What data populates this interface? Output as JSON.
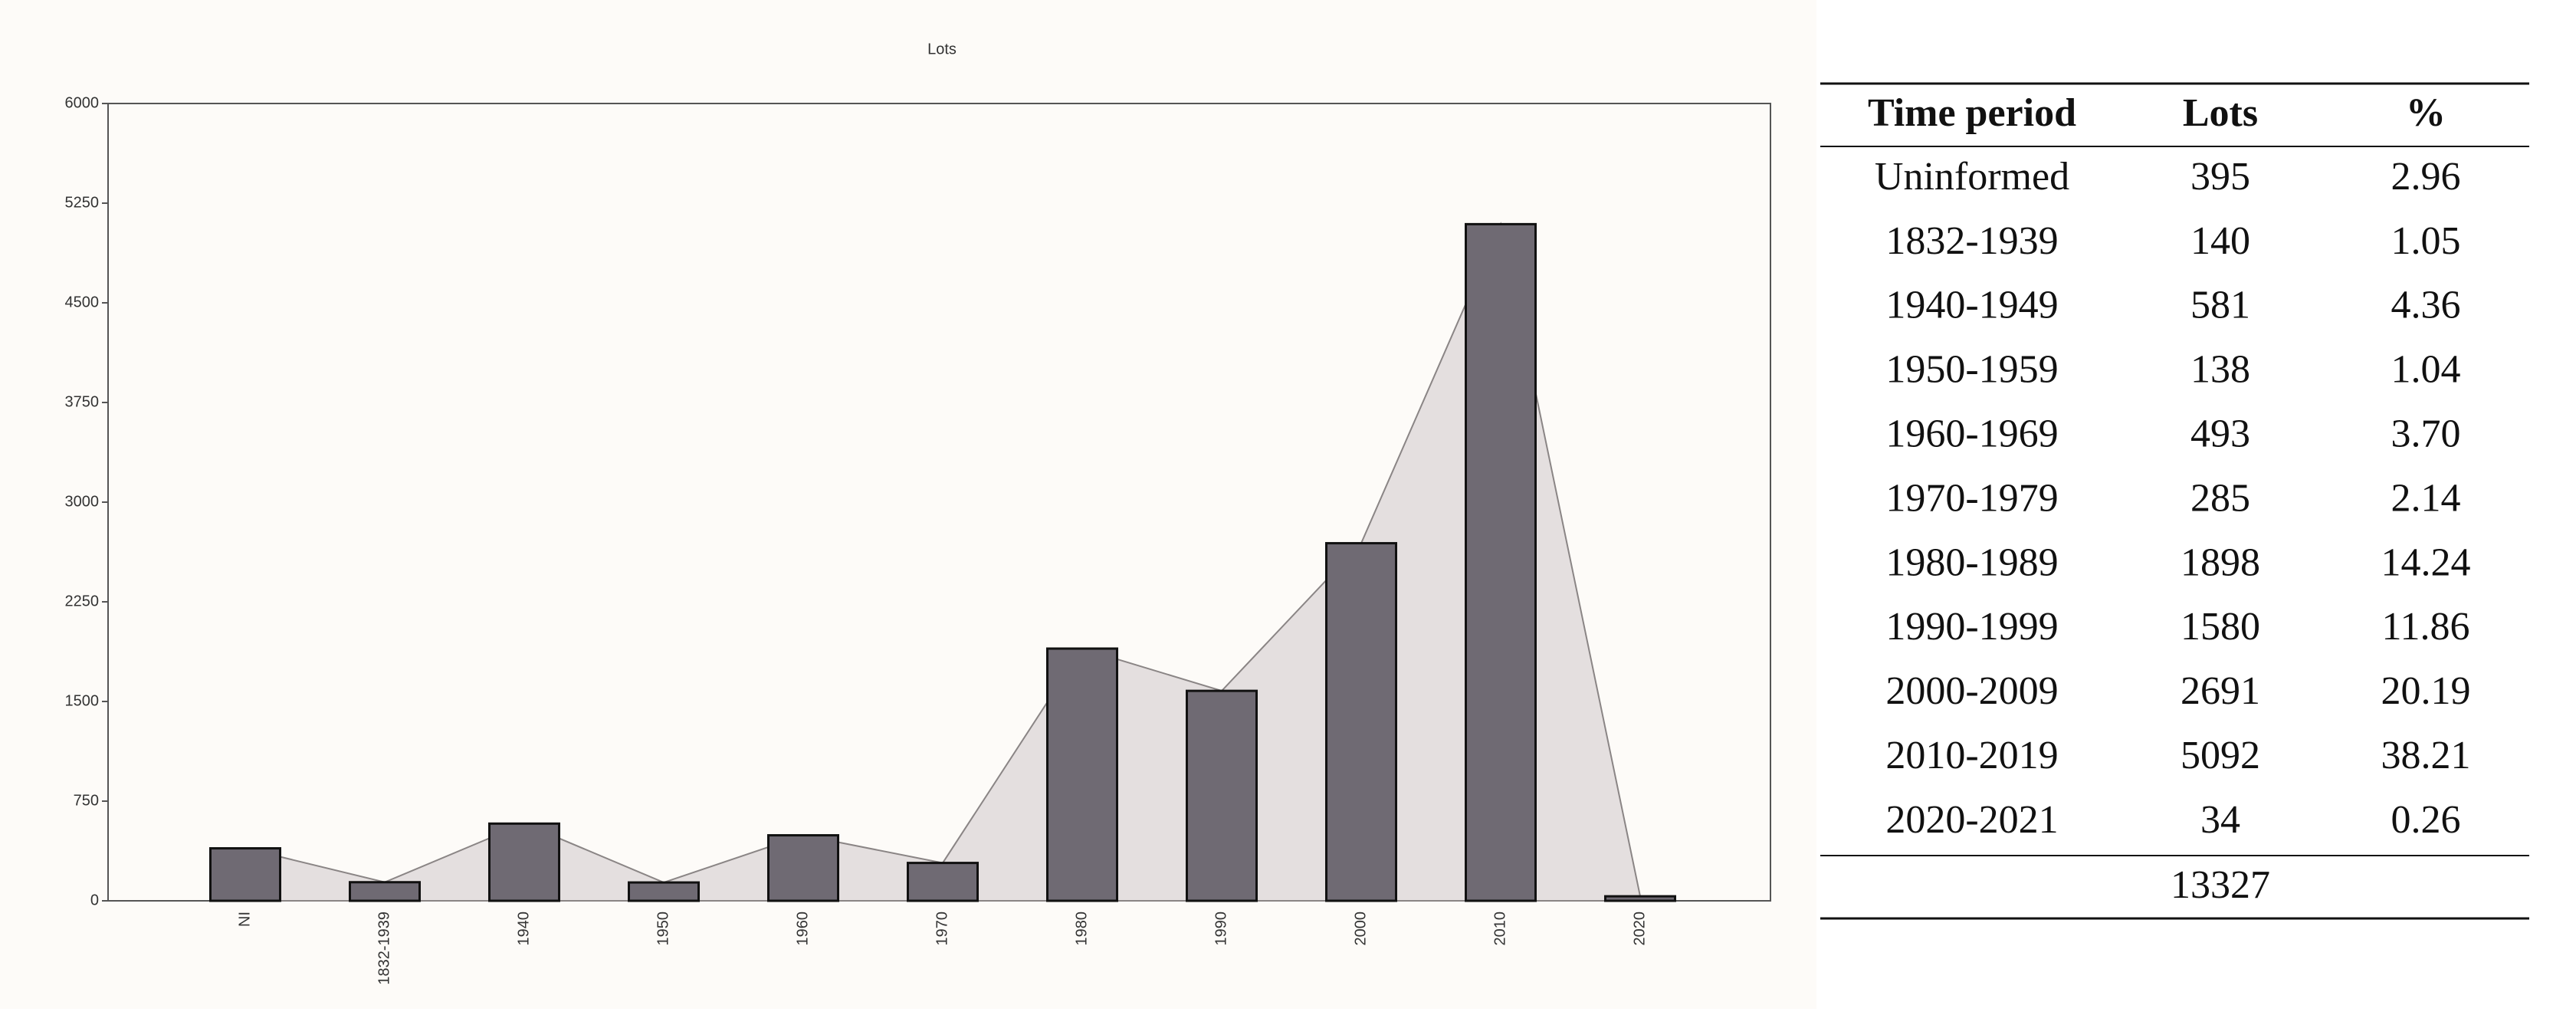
{
  "chart_data": {
    "type": "bar",
    "title": "Lots",
    "categories": [
      "NI",
      "1832-1939",
      "1940",
      "1950",
      "1960",
      "1970",
      "1980",
      "1990",
      "2000",
      "2010",
      "2020"
    ],
    "values": [
      395,
      140,
      581,
      138,
      493,
      285,
      1898,
      1580,
      2691,
      5092,
      34
    ],
    "color": "#6f6a73",
    "area_color": "#e4dfdf",
    "ylim": [
      0,
      6000
    ],
    "yticks": [
      0,
      750,
      1500,
      2250,
      3000,
      3750,
      4500,
      5250,
      6000
    ]
  },
  "table": {
    "header": [
      "Time period",
      "Lots",
      "%"
    ],
    "rows": [
      [
        "Uninformed",
        "395",
        "2.96"
      ],
      [
        "1832-1939",
        "140",
        "1.05"
      ],
      [
        "1940-1949",
        "581",
        "4.36"
      ],
      [
        "1950-1959",
        "138",
        "1.04"
      ],
      [
        "1960-1969",
        "493",
        "3.70"
      ],
      [
        "1970-1979",
        "285",
        "2.14"
      ],
      [
        "1980-1989",
        "1898",
        "14.24"
      ],
      [
        "1990-1999",
        "1580",
        "11.86"
      ],
      [
        "2000-2009",
        "2691",
        "20.19"
      ],
      [
        "2010-2019",
        "5092",
        "38.21"
      ],
      [
        "2020-2021",
        "34",
        "0.26"
      ]
    ],
    "total": "13327"
  }
}
